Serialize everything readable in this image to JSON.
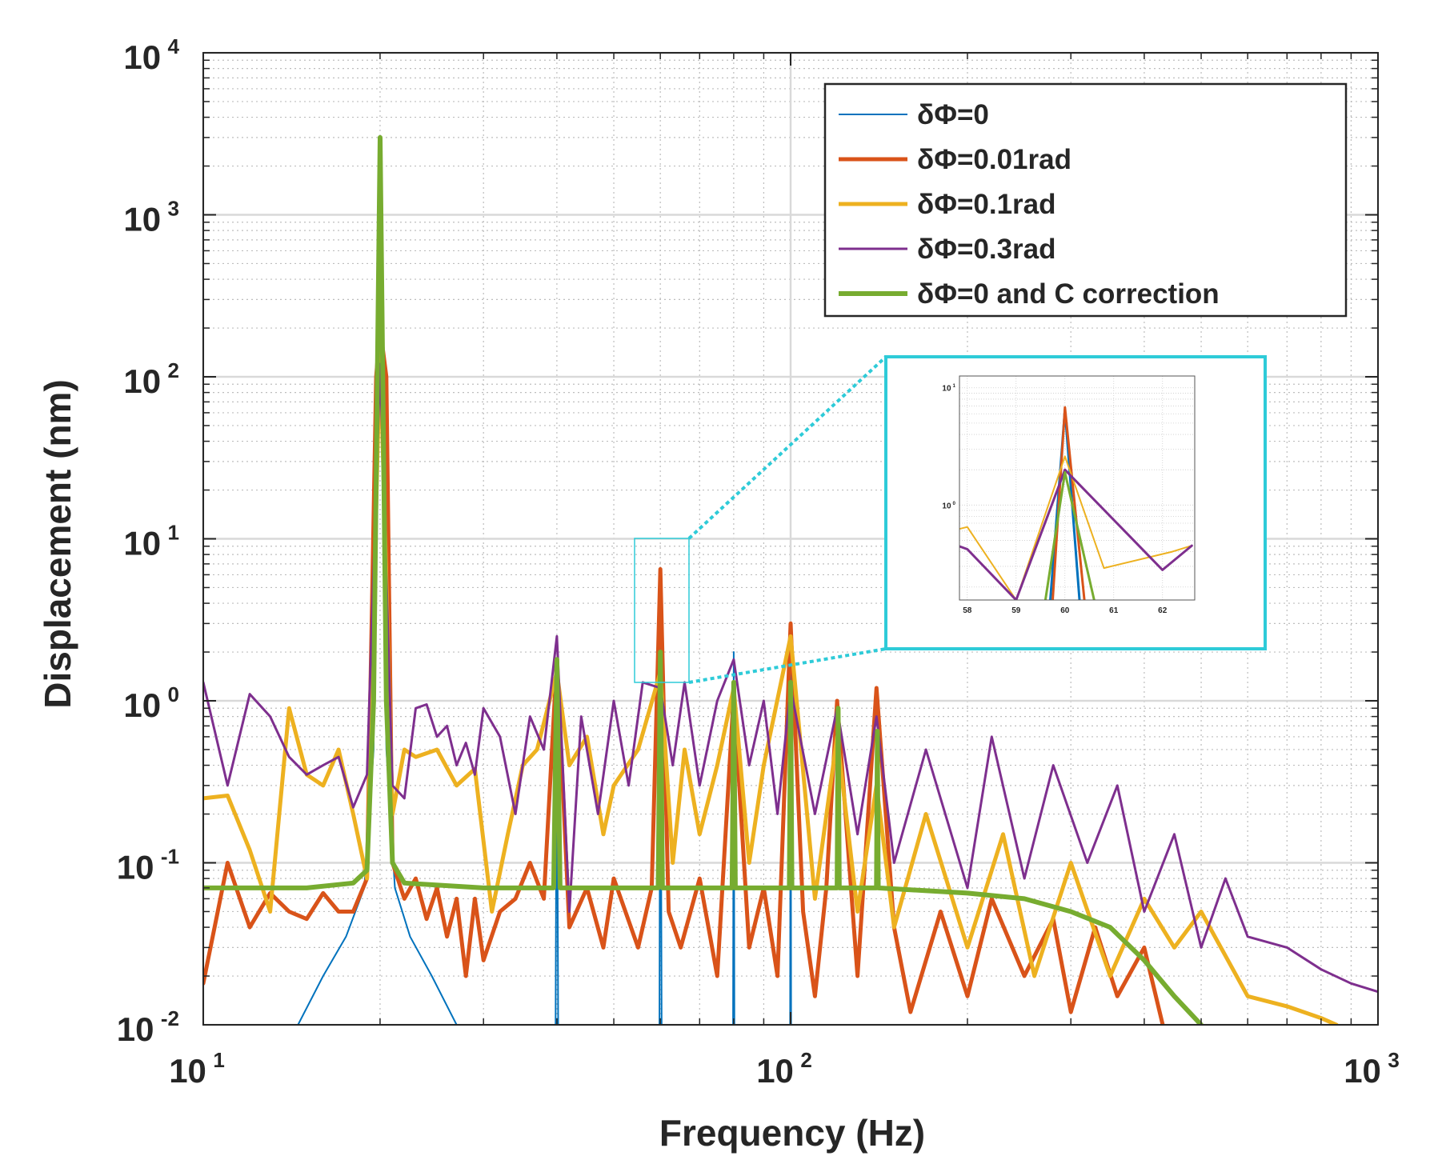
{
  "chart_data": {
    "type": "line",
    "xlabel": "Frequency (Hz)",
    "ylabel": "Displacement (nm)",
    "xscale": "log",
    "yscale": "log",
    "xlim": [
      10,
      1000
    ],
    "ylim": [
      0.01,
      10000
    ],
    "xticks": [
      {
        "value": 10,
        "label": "10",
        "exponent": "1"
      },
      {
        "value": 100,
        "label": "10",
        "exponent": "2"
      },
      {
        "value": 1000,
        "label": "10",
        "exponent": "3"
      }
    ],
    "yticks": [
      {
        "value": 0.01,
        "label": "10",
        "exponent": "-2"
      },
      {
        "value": 0.1,
        "label": "10",
        "exponent": "-1"
      },
      {
        "value": 1,
        "label": "10",
        "exponent": "0"
      },
      {
        "value": 10,
        "label": "10",
        "exponent": "1"
      },
      {
        "value": 100,
        "label": "10",
        "exponent": "2"
      },
      {
        "value": 1000,
        "label": "10",
        "exponent": "3"
      },
      {
        "value": 10000,
        "label": "10",
        "exponent": "4"
      }
    ],
    "grid": true,
    "minor_grid": true,
    "legend": "upper right",
    "series": [
      {
        "name": "δΦ=0",
        "color": "#0072bd",
        "width": 2,
        "x": [
          14.5,
          16,
          17.5,
          18.8,
          19.5,
          20,
          20.5,
          21.2,
          22.5,
          24.5,
          27,
          39.8,
          40,
          40.2,
          59.8,
          60,
          60.3,
          79.8,
          80,
          80.2,
          99.8,
          100,
          100.2
        ],
        "values": [
          0.01,
          0.02,
          0.035,
          0.07,
          0.5,
          3000,
          0.5,
          0.07,
          0.035,
          0.02,
          0.01,
          0.01,
          1.5,
          0.01,
          0.01,
          6,
          0.01,
          0.01,
          2,
          0.01,
          0.01,
          3,
          0.01
        ]
      },
      {
        "name": "δΦ=0.01rad",
        "color": "#d95319",
        "width": 5,
        "x": [
          10,
          11,
          12,
          13,
          14,
          15,
          16,
          17,
          18,
          19,
          19.7,
          20,
          20.5,
          21,
          22,
          23,
          24,
          25,
          26,
          27,
          28,
          29,
          30,
          32,
          34,
          36,
          38,
          40,
          42,
          45,
          48,
          50,
          55,
          58,
          60,
          62,
          65,
          70,
          75,
          80,
          85,
          90,
          95,
          100,
          105,
          110,
          115,
          120,
          130,
          140,
          150,
          160,
          180,
          200,
          220,
          250,
          280,
          300,
          330,
          360,
          400,
          430
        ],
        "values": [
          0.018,
          0.1,
          0.04,
          0.065,
          0.05,
          0.045,
          0.065,
          0.05,
          0.05,
          0.08,
          100,
          200,
          100,
          0.1,
          0.06,
          0.08,
          0.045,
          0.07,
          0.035,
          0.06,
          0.02,
          0.06,
          0.025,
          0.05,
          0.06,
          0.1,
          0.06,
          1.8,
          0.04,
          0.07,
          0.03,
          0.08,
          0.03,
          0.07,
          6.5,
          0.05,
          0.03,
          0.08,
          0.02,
          1.1,
          0.03,
          0.07,
          0.02,
          3,
          0.05,
          0.015,
          0.07,
          1,
          0.02,
          1.2,
          0.04,
          0.012,
          0.05,
          0.015,
          0.06,
          0.02,
          0.045,
          0.012,
          0.04,
          0.015,
          0.03,
          0.01
        ]
      },
      {
        "name": "δΦ=0.1rad",
        "color": "#edb120",
        "width": 5,
        "x": [
          10,
          11,
          12,
          13,
          14,
          15,
          16,
          17,
          18,
          19,
          20,
          21,
          22,
          23,
          25,
          27,
          29,
          31,
          33,
          35,
          37,
          40,
          42,
          45,
          48,
          50,
          55,
          60,
          63,
          66,
          70,
          75,
          80,
          85,
          90,
          100,
          110,
          120,
          130,
          140,
          150,
          170,
          200,
          230,
          260,
          300,
          350,
          400,
          450,
          500,
          600,
          700,
          800,
          850
        ],
        "values": [
          0.25,
          0.26,
          0.12,
          0.05,
          0.9,
          0.35,
          0.3,
          0.5,
          0.2,
          0.08,
          150,
          0.2,
          0.5,
          0.45,
          0.5,
          0.3,
          0.38,
          0.05,
          0.15,
          0.4,
          0.5,
          1.5,
          0.4,
          0.6,
          0.15,
          0.3,
          0.5,
          1.5,
          0.1,
          0.5,
          0.15,
          0.4,
          1.2,
          0.1,
          0.4,
          2.5,
          0.06,
          0.6,
          0.05,
          0.3,
          0.04,
          0.2,
          0.03,
          0.15,
          0.02,
          0.1,
          0.02,
          0.06,
          0.03,
          0.05,
          0.015,
          0.013,
          0.011,
          0.01
        ]
      },
      {
        "name": "δΦ=0.3rad",
        "color": "#7e2f8e",
        "width": 3,
        "x": [
          10,
          11,
          12,
          13,
          14,
          15,
          16,
          17,
          18,
          19,
          20,
          21,
          22,
          23,
          24,
          25,
          26,
          27,
          28,
          29,
          30,
          32,
          34,
          36,
          38,
          40,
          42,
          44,
          47,
          50,
          53,
          56,
          60,
          63,
          66,
          70,
          75,
          80,
          85,
          90,
          95,
          100,
          110,
          120,
          130,
          140,
          150,
          170,
          200,
          220,
          250,
          280,
          320,
          360,
          400,
          450,
          500,
          550,
          600,
          700,
          800,
          900,
          1000
        ],
        "values": [
          1.3,
          0.3,
          1.1,
          0.8,
          0.45,
          0.35,
          0.4,
          0.45,
          0.22,
          0.35,
          120,
          0.3,
          0.25,
          0.9,
          0.95,
          0.6,
          0.7,
          0.4,
          0.55,
          0.35,
          0.9,
          0.6,
          0.2,
          0.8,
          0.5,
          2.5,
          0.05,
          0.8,
          0.2,
          1,
          0.3,
          1.3,
          1.2,
          0.4,
          1.3,
          0.3,
          1,
          1.8,
          0.4,
          1,
          0.2,
          1.2,
          0.2,
          0.9,
          0.15,
          0.8,
          0.1,
          0.5,
          0.07,
          0.6,
          0.08,
          0.4,
          0.1,
          0.3,
          0.05,
          0.15,
          0.03,
          0.08,
          0.035,
          0.03,
          0.022,
          0.018,
          0.016
        ]
      },
      {
        "name": "δΦ=0 and C correction",
        "color": "#77ac30",
        "width": 6,
        "x": [
          10,
          15,
          18,
          19,
          19.5,
          20,
          20.5,
          21,
          22,
          30,
          39.5,
          40,
          40.5,
          59.5,
          60,
          60.5,
          79.5,
          80,
          80.5,
          99.5,
          100,
          100.5,
          120,
          120.5,
          121,
          140,
          140.5,
          141,
          200,
          250,
          300,
          350,
          400,
          450,
          500
        ],
        "values": [
          0.07,
          0.07,
          0.075,
          0.09,
          1,
          3000,
          1,
          0.1,
          0.075,
          0.07,
          0.07,
          1.8,
          0.07,
          0.07,
          2,
          0.07,
          0.07,
          1.3,
          0.07,
          0.07,
          1.3,
          0.07,
          0.07,
          0.9,
          0.07,
          0.07,
          0.65,
          0.07,
          0.065,
          0.06,
          0.05,
          0.04,
          0.025,
          0.015,
          0.01
        ]
      }
    ],
    "inset": {
      "xlim": [
        57.84,
        62.66
      ],
      "ylim": [
        0.155,
        12.6
      ],
      "xticks": [
        58,
        59,
        60,
        61,
        62
      ],
      "yticks": [
        {
          "value": 1,
          "label": "10",
          "exponent": "0"
        },
        {
          "value": 10,
          "label": "10",
          "exponent": "1"
        }
      ],
      "series": [
        {
          "color": "#0072bd",
          "width": 3,
          "x": [
            59.7,
            60,
            60.3
          ],
          "values": [
            0.155,
            6.5,
            0.155
          ]
        },
        {
          "color": "#d95319",
          "width": 3,
          "x": [
            59.75,
            60,
            60.4
          ],
          "values": [
            0.155,
            6.8,
            0.155
          ]
        },
        {
          "color": "#edb120",
          "width": 2,
          "x": [
            57.8,
            58,
            59,
            60,
            60.8,
            62.2,
            62.6
          ],
          "values": [
            0.62,
            0.65,
            0.155,
            2.6,
            0.29,
            0.4,
            0.45
          ]
        },
        {
          "color": "#7e2f8e",
          "width": 3,
          "x": [
            57.8,
            58,
            59,
            60,
            62,
            62.6
          ],
          "values": [
            0.45,
            0.42,
            0.155,
            2.0,
            0.28,
            0.45
          ]
        },
        {
          "color": "#77ac30",
          "width": 3,
          "x": [
            59.6,
            60,
            60.6
          ],
          "values": [
            0.155,
            1.9,
            0.155
          ]
        }
      ]
    }
  }
}
